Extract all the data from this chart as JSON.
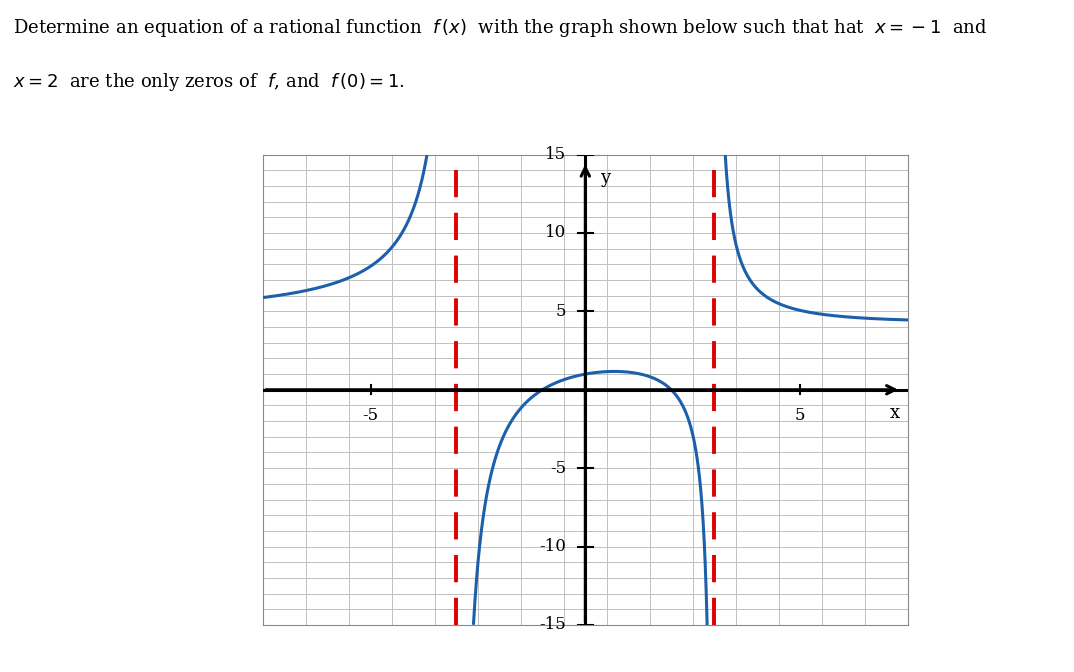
{
  "vertical_asymptotes": [
    -3,
    3
  ],
  "zeros": [
    -1,
    2
  ],
  "k": 4.5,
  "curve_color": "#1c5faa",
  "asymptote_color": "#dd0000",
  "grid_color": "#c0c0c0",
  "axis_color": "#000000",
  "curve_lw": 2.2,
  "asymptote_lw": 2.8,
  "graph_xlim": [
    -7.5,
    7.5
  ],
  "graph_ylim": [
    -15,
    15
  ],
  "xticks": [
    -5,
    0,
    5
  ],
  "yticks": [
    -15,
    -10,
    -5,
    0,
    5,
    10,
    15
  ],
  "axis_label_x": "x",
  "axis_label_y": "y",
  "text_line1": "Determine an equation of a rational function",
  "text_line2": "are the only zeros of",
  "header_fontsize": 13
}
